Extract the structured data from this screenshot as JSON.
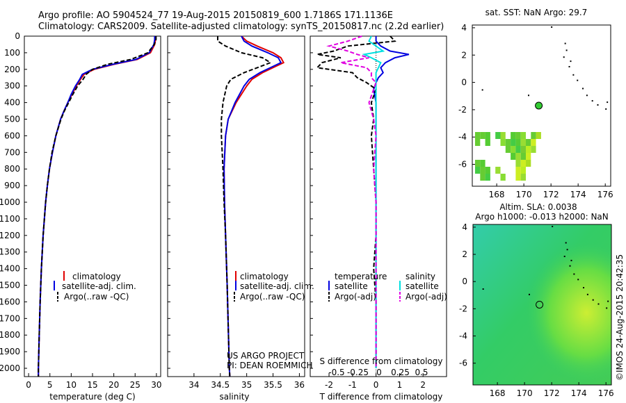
{
  "header": {
    "line1": "Argo profile: AO 5904524_77 19-Aug-2015 20150819_600 1.7186S 171.1136E",
    "line2": "Climatology: CARS2009. Satellite-adjusted climatology: synTS_20150817.nc (2.2d earlier)"
  },
  "credits": {
    "project": "US ARGO PROJECT",
    "pi": "PI: DEAN ROEMMICH",
    "stamp": "©IMOS 24-Aug-2015 20:42:35"
  },
  "colors": {
    "climatology": "#e00000",
    "satellite": "#0000e0",
    "argo": "#000000",
    "sat_salinity": "#00e0e0",
    "argo_salinity": "#e000e0"
  },
  "chart_data": [
    {
      "type": "line",
      "id": "temperature",
      "xlabel": "temperature (deg C)",
      "ylabel": "",
      "xlim": [
        -1,
        31
      ],
      "ylim": [
        2050,
        0
      ],
      "xticks": [
        0,
        5,
        10,
        15,
        20,
        25,
        30
      ],
      "yticks": [
        0,
        100,
        200,
        300,
        400,
        500,
        600,
        700,
        800,
        900,
        1000,
        1100,
        1200,
        1300,
        1400,
        1500,
        1600,
        1700,
        1800,
        1900,
        2000
      ],
      "y": [
        0,
        20,
        50,
        100,
        140,
        170,
        200,
        230,
        260,
        300,
        350,
        400,
        450,
        500,
        600,
        700,
        800,
        900,
        1000,
        1200,
        1400,
        1600,
        1800,
        2000,
        2050
      ],
      "legend": [
        "climatology",
        "satellite-adj. clim.",
        "Argo(..raw -QC)"
      ],
      "series": [
        {
          "name": "climatology",
          "x": [
            29.8,
            29.8,
            29.6,
            28.6,
            25.5,
            20,
            15.4,
            13,
            12.2,
            11.2,
            10.2,
            9.2,
            8.3,
            7.5,
            6.4,
            5.6,
            4.9,
            4.4,
            4,
            3.4,
            3,
            2.7,
            2.5,
            2.3,
            2.3
          ]
        },
        {
          "name": "satellite-adj. clim.",
          "x": [
            29.6,
            29.6,
            29.4,
            28.3,
            25.2,
            19.7,
            15,
            12.6,
            12,
            11,
            10,
            9.2,
            8.3,
            7.5,
            6.4,
            5.6,
            4.9,
            4.4,
            4,
            3.4,
            3,
            2.7,
            2.5,
            2.3,
            2.3
          ]
        },
        {
          "name": "Argo(..raw -QC)",
          "x": [
            29.9,
            29.9,
            29.5,
            28,
            24,
            18.5,
            15,
            13.5,
            12.8,
            11.5,
            10.4,
            9.4,
            8.4,
            7.6,
            6.4,
            5.5,
            4.9,
            4.4,
            4,
            3.4,
            3,
            2.7,
            2.5,
            2.3,
            2.3
          ]
        }
      ]
    },
    {
      "type": "line",
      "id": "salinity",
      "xlabel": "salinity",
      "xlim": [
        33.5,
        36.1
      ],
      "ylim": [
        2050,
        0
      ],
      "xticks": [
        34,
        34.5,
        35,
        35.5,
        36
      ],
      "y": [
        0,
        30,
        60,
        100,
        130,
        160,
        190,
        220,
        260,
        300,
        400,
        500,
        600,
        800,
        1000,
        1200,
        1500,
        2000,
        2050
      ],
      "legend": [
        "climatology",
        "satellite-adj. clim."
      ],
      "series": [
        {
          "name": "climatology",
          "x": [
            34.9,
            35.0,
            35.2,
            35.5,
            35.65,
            35.7,
            35.5,
            35.3,
            35.1,
            35.0,
            34.8,
            34.65,
            34.6,
            34.57,
            34.58,
            34.6,
            34.63,
            34.67,
            34.68
          ]
        },
        {
          "name": "satellite-adj. clim.",
          "x": [
            34.9,
            34.95,
            35.1,
            35.4,
            35.6,
            35.65,
            35.45,
            35.25,
            35.05,
            34.95,
            34.78,
            34.65,
            34.6,
            34.57,
            34.58,
            34.6,
            34.63,
            34.67,
            34.68
          ]
        },
        {
          "name": "Argo(..raw -QC)",
          "x": [
            34.45,
            34.45,
            34.6,
            34.9,
            35.3,
            35.45,
            35.2,
            34.95,
            34.7,
            34.62,
            34.55,
            34.52,
            34.52,
            34.55,
            34.57,
            34.6,
            34.63,
            34.67,
            34.68
          ]
        }
      ]
    },
    {
      "type": "line",
      "id": "difference",
      "xlabel": "T difference from climatology",
      "xlabel_top": "S difference from climatology",
      "xlim": [
        -2.8,
        3
      ],
      "ylim": [
        2050,
        0
      ],
      "xticks": [
        -2,
        -1,
        0,
        1,
        2
      ],
      "sticks": [
        "-0.5",
        "-0.25",
        "0",
        "0.25",
        "0.5"
      ],
      "y": [
        0,
        30,
        60,
        90,
        110,
        130,
        160,
        190,
        220,
        250,
        280,
        320,
        400,
        500,
        600,
        800,
        1000,
        1200,
        1400,
        1600,
        1800,
        2000
      ],
      "legend_titles": [
        "temperature",
        "salinity"
      ],
      "legend_left": [
        "satellite",
        "Argo(-adj)"
      ],
      "legend_right": [
        "satellite",
        "Argo(-adj)"
      ],
      "series": [
        {
          "name": "satellite",
          "x": [
            0,
            0,
            0.2,
            0.6,
            1.4,
            0.8,
            0.4,
            0.2,
            0.3,
            0.1,
            0,
            -0.1,
            0,
            0,
            0,
            0,
            0,
            0,
            0,
            0,
            0,
            0
          ]
        },
        {
          "name": "Argo(-adj)",
          "x": [
            0.6,
            0.8,
            -1.2,
            -1.8,
            -2.5,
            -1.5,
            -2.3,
            -2.5,
            -1,
            -0.8,
            -0.4,
            0,
            -0.2,
            -0.1,
            -0.2,
            -0.1,
            0,
            0,
            -0.1,
            0,
            0,
            0
          ]
        },
        {
          "name": "satellite",
          "x": [
            -0.2,
            -0.3,
            0,
            0.3,
            -0.5,
            -0.2,
            0.2,
            0.1,
            0,
            0,
            0,
            0,
            0,
            0,
            0,
            0,
            0,
            0,
            0,
            0,
            0,
            0
          ]
        },
        {
          "name": "Argo(-adj)",
          "x": [
            -0.6,
            -1.2,
            -2.0,
            -1.2,
            -0.8,
            -0.3,
            -1.5,
            -0.4,
            -0.2,
            -0.2,
            0,
            -0.1,
            -0.3,
            -0.1,
            0,
            -0.1,
            0,
            0,
            0,
            0,
            0,
            0
          ]
        }
      ]
    },
    {
      "type": "heatmap",
      "id": "sst-map",
      "title": "sat. SST: NaN Argo: 29.7",
      "xlim": [
        166.2,
        176.4
      ],
      "ylim": [
        -7.6,
        4.2
      ],
      "xticks": [
        168,
        170,
        172,
        174,
        176
      ],
      "yticks": [
        -6,
        -4,
        -2,
        0,
        2,
        4
      ],
      "argo_position": [
        171.1,
        -1.7
      ]
    },
    {
      "type": "heatmap",
      "id": "sla-map",
      "title": "Altim. SLA: 0.0038",
      "subtitle": "Argo h1000: -0.013 h2000: NaN",
      "xlim": [
        166.2,
        176.4
      ],
      "ylim": [
        -7.6,
        4.2
      ],
      "xticks": [
        168,
        170,
        172,
        174,
        176
      ],
      "yticks": [
        -6,
        -4,
        -2,
        0,
        2,
        4
      ],
      "argo_position": [
        171.1,
        -1.7
      ]
    }
  ]
}
